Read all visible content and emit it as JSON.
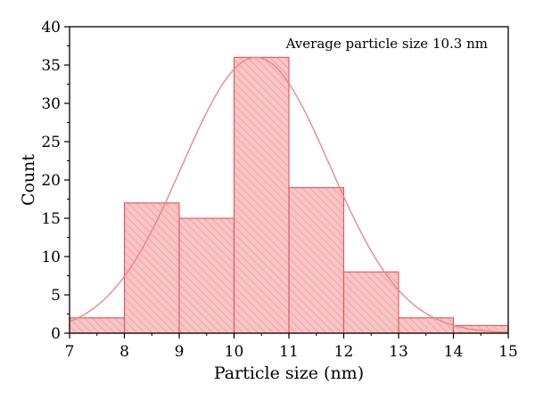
{
  "chart_data": {
    "type": "bar",
    "subtype": "histogram",
    "title": "",
    "annotation": "Average particle size 10.3 nm",
    "xlabel": "Particle size (nm)",
    "ylabel": "Count",
    "xlim": [
      7,
      15
    ],
    "ylim": [
      0,
      40
    ],
    "xticks": [
      7,
      8,
      9,
      10,
      11,
      12,
      13,
      14,
      15
    ],
    "yticks": [
      0,
      5,
      10,
      15,
      20,
      25,
      30,
      35,
      40
    ],
    "bins": [
      {
        "start": 7,
        "end": 8,
        "count": 2
      },
      {
        "start": 8,
        "end": 9,
        "count": 17
      },
      {
        "start": 9,
        "end": 10,
        "count": 15
      },
      {
        "start": 10,
        "end": 11,
        "count": 36
      },
      {
        "start": 11,
        "end": 12,
        "count": 19
      },
      {
        "start": 12,
        "end": 13,
        "count": 8
      },
      {
        "start": 13,
        "end": 14,
        "count": 2
      },
      {
        "start": 14,
        "end": 15,
        "count": 1
      }
    ],
    "fit_curve": {
      "type": "gaussian",
      "peak": 36,
      "mean": 10.4,
      "sigma": 1.35
    },
    "grid": false,
    "colors": {
      "bar_fill": "#f7c5c5",
      "bar_edge": "#e8525a",
      "hatch": "#f09a9f",
      "curve": "#f08080"
    }
  }
}
